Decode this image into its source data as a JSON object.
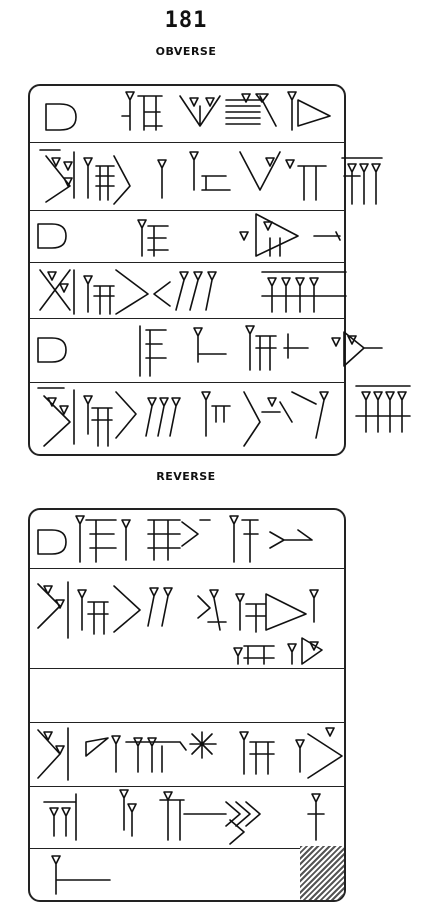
{
  "header": {
    "text_number": "181",
    "obverse_label": "OBVERSE",
    "reverse_label": "REVERSE"
  },
  "colors": {
    "ink": "#111111",
    "background": "#ffffff"
  },
  "obverse": {
    "line_count": 6
  },
  "reverse": {
    "line_count": 6,
    "damaged_corner": "bottom-right"
  }
}
